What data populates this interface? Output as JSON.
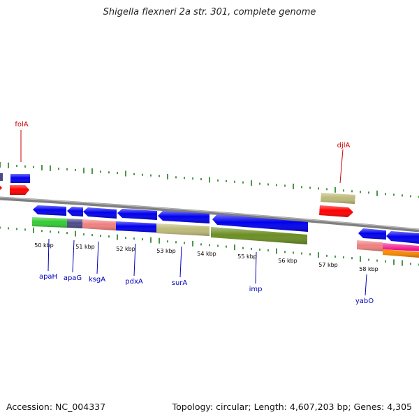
{
  "title": "Shigella flexneri 2a str. 301, complete genome",
  "footer": {
    "accession": "Accession: NC_004337",
    "topology": "Topology: circular; Length: 4,607,203 bp; Genes: 4,305"
  },
  "scale_labels": [
    "50 kbp",
    "51 kbp",
    "52 kbp",
    "53 kbp",
    "54 kbp",
    "55 kbp",
    "56 kbp",
    "57 kbp",
    "58 kbp"
  ],
  "gene_labels": {
    "top": [
      "folA",
      "djlA"
    ],
    "bottom": [
      "apaH",
      "apaG",
      "ksgA",
      "pdxA",
      "surA",
      "imp",
      "yabO"
    ]
  },
  "colors": {
    "label_red": "#cc0000",
    "label_blue": "#0000bb",
    "tick_green": "#1f7a1f",
    "gene_blue": "#0000ee",
    "gene_red": "#ff0000",
    "gene_khaki": "#bdb978",
    "gene_olive": "#6b8e23",
    "gene_green": "#33cc33",
    "gene_slate": "#4a4a8a",
    "gene_salmon": "#f08080",
    "gene_magenta": "#ee1289",
    "gene_orange": "#ff8c00",
    "backbone": "#808080"
  }
}
